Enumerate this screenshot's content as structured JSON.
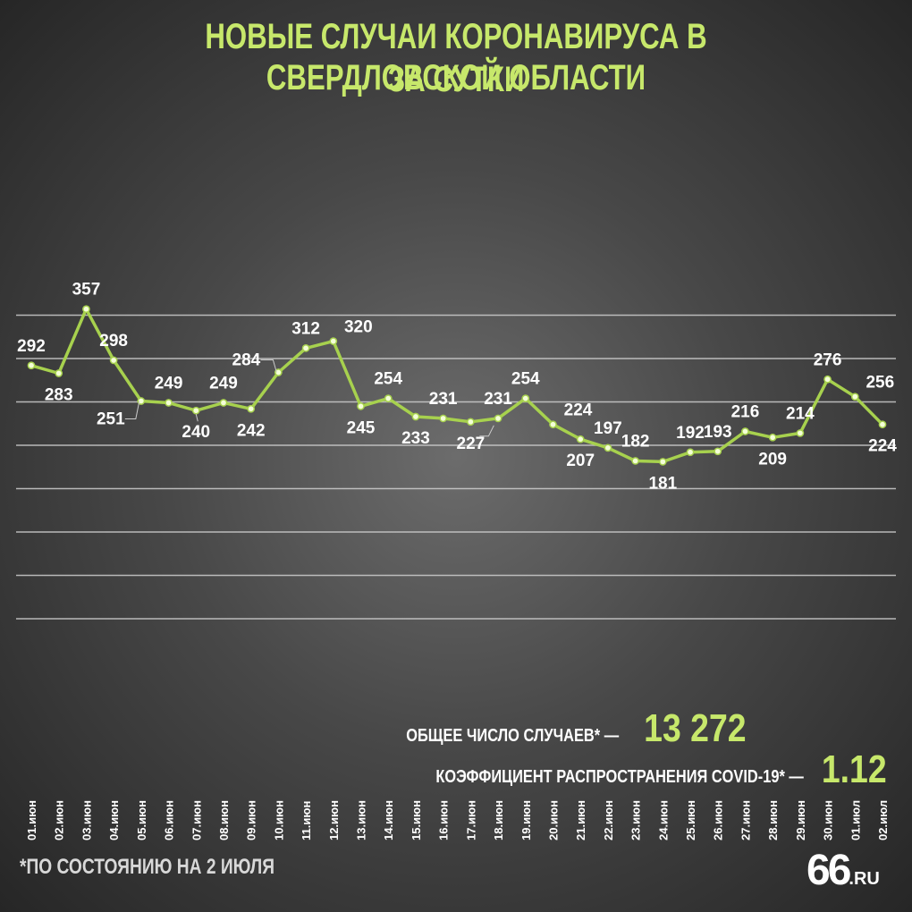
{
  "title": {
    "line1": "НОВЫЕ СЛУЧАИ КОРОНАВИРУСА В СВЕРДЛОВСКОЙ ОБЛАСТИ",
    "line2": "ЗА СУТКИ"
  },
  "summary": {
    "total_label": "ОБЩЕЕ ЧИСЛО СЛУЧАЕВ* —",
    "total_value": "13 272",
    "coef_label": "КОЭФФИЦИЕНТ РАСПРОСТРАНЕНИЯ COVID-19* —",
    "coef_value": "1.12"
  },
  "footnote": "*ПО СОСТОЯНИЮ НА 2 ИЮЛЯ",
  "logo": {
    "number": "66",
    "suffix": ".RU"
  },
  "colors": {
    "accent": "#c7e86b",
    "line": "#a7d14e",
    "grid": "#cfcfcf"
  },
  "chart_data": {
    "type": "line",
    "categories": [
      "01.июн",
      "02.июн",
      "03.июн",
      "04.июн",
      "05.июн",
      "06.июн",
      "07.июн",
      "08.июн",
      "09.июн",
      "10.июн",
      "11.июн",
      "12.июн",
      "13.июн",
      "14.июн",
      "15.июн",
      "16.июн",
      "17.июн",
      "18.июн",
      "19.июн",
      "20.июн",
      "21.июн",
      "22.июн",
      "23.июн",
      "24.июн",
      "25.июн",
      "26.июн",
      "27.июн",
      "28.июн",
      "29.июн",
      "30.июн",
      "01.июл",
      "02.июл"
    ],
    "values": [
      292,
      283,
      357,
      298,
      251,
      249,
      240,
      249,
      242,
      284,
      312,
      320,
      245,
      254,
      233,
      231,
      227,
      231,
      254,
      224,
      207,
      197,
      182,
      181,
      192,
      193,
      216,
      209,
      214,
      276,
      256,
      224
    ],
    "label_pos": [
      "above",
      "below",
      "above",
      "above",
      "below-left",
      "above",
      "below",
      "above",
      "below",
      "above-left",
      "above",
      "above-right",
      "below",
      "above",
      "below",
      "above",
      "below",
      "above",
      "above",
      "above-right",
      "below",
      "above",
      "above",
      "below",
      "above",
      "above",
      "above",
      "below",
      "above",
      "above",
      "above-right",
      "below"
    ],
    "grid": true,
    "legend": "none"
  }
}
